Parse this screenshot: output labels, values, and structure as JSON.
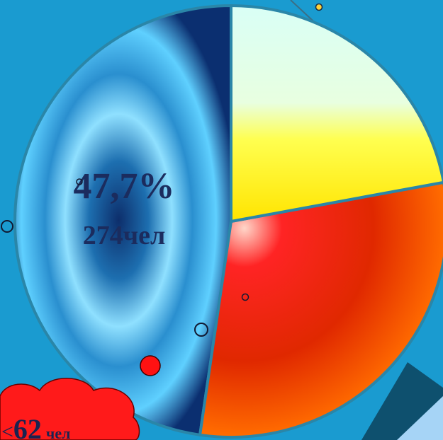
{
  "chart_data": {
    "type": "pie",
    "slices": [
      {
        "value": 47.7,
        "value_label": "47,7%",
        "count_label": "274чел",
        "color": "#3fb6e6"
      },
      {
        "value": 22.1,
        "value_label": "",
        "count_label": "",
        "color": "#f6ff3a"
      },
      {
        "value": 30.2,
        "value_label": "",
        "count_label": "",
        "color": "#ff3a14"
      }
    ],
    "start_angle_deg": 0,
    "direction": "counterclockwise"
  },
  "callout": {
    "text_prefix": "<",
    "number": "62",
    "unit": "чел",
    "color": "#ff1a1a"
  },
  "colors": {
    "background": "#1a9bd0",
    "slice_border": "#2a86a8"
  }
}
